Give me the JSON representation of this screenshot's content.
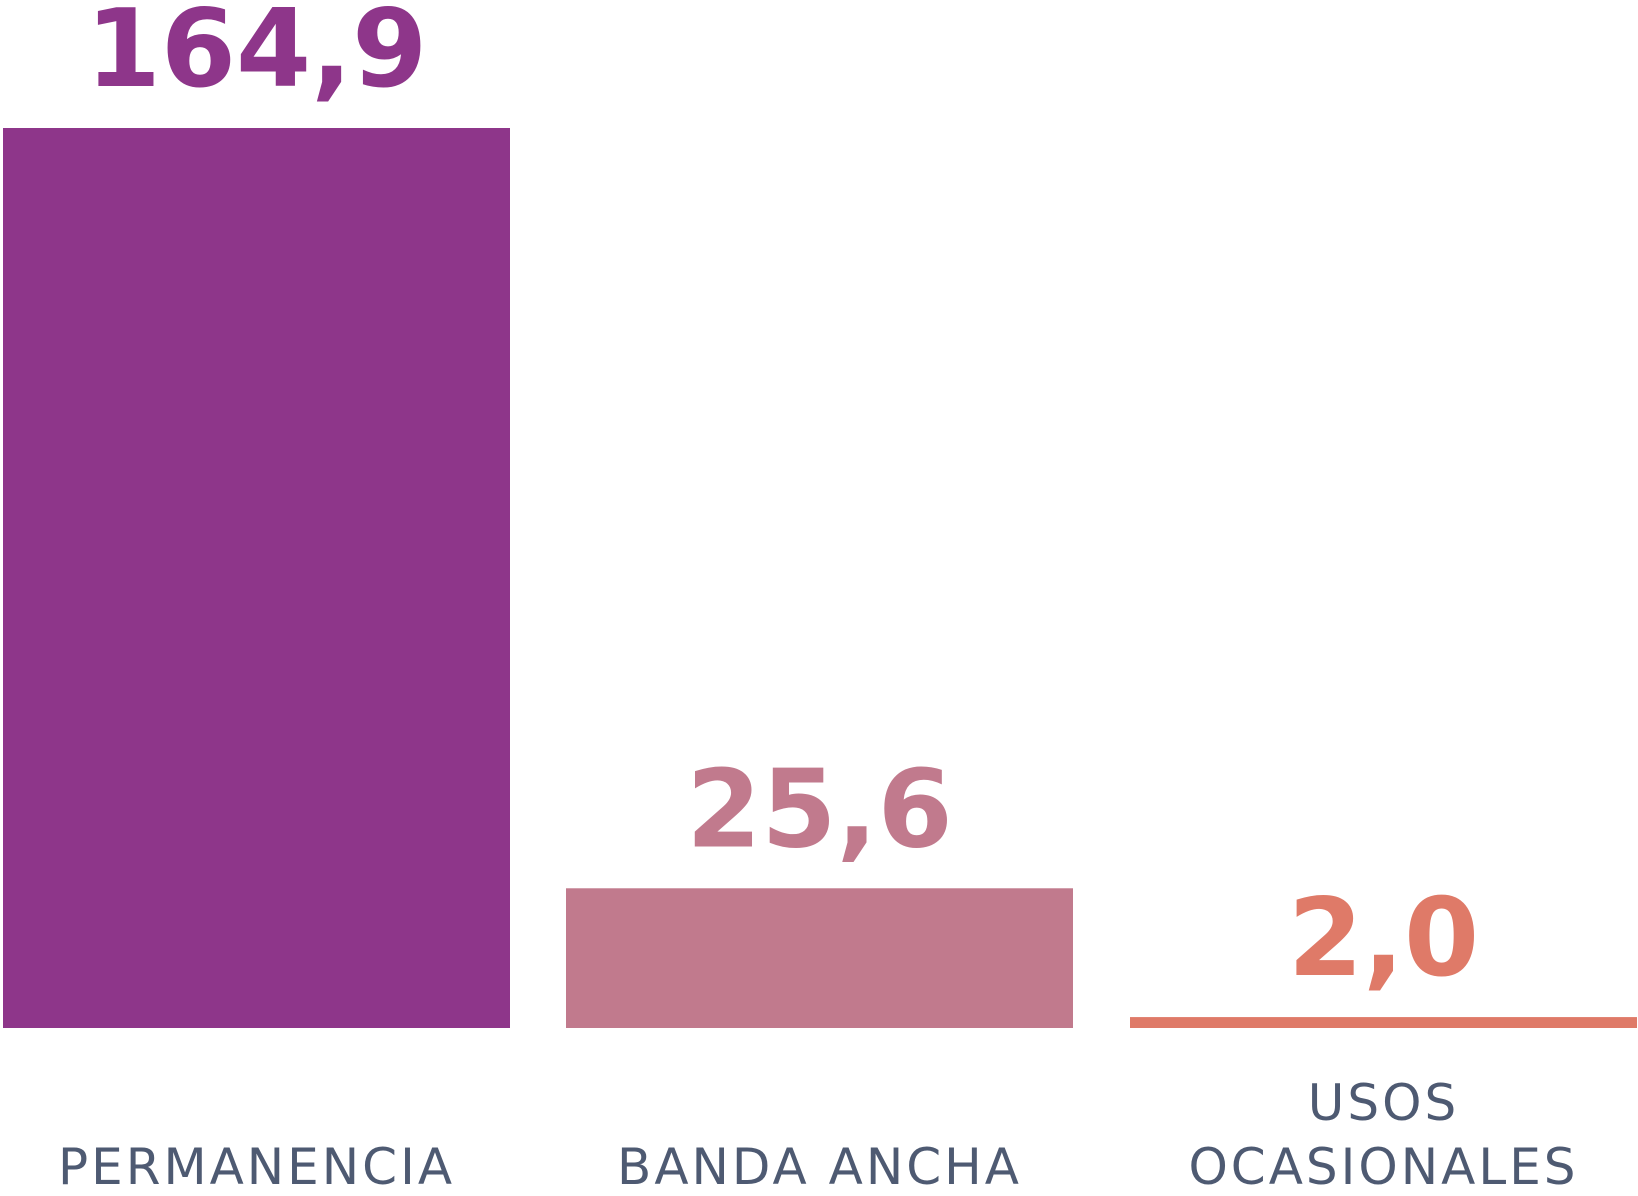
{
  "chart_data": {
    "type": "bar",
    "categories": [
      [
        "PERMANENCIA"
      ],
      [
        "BANDA ANCHA"
      ],
      [
        "USOS",
        "OCASIONALES"
      ]
    ],
    "values": [
      164.9,
      25.6,
      2.0
    ],
    "value_labels": [
      "164,9",
      "25,6",
      "2,0"
    ],
    "colors": [
      "#8e368a",
      "#c17a8d",
      "#df7a68"
    ],
    "label_color": "#4e5a72",
    "title": "",
    "xlabel": "",
    "ylabel": "",
    "ylim": [
      0,
      164.9
    ],
    "grid": false,
    "legend": "none"
  }
}
